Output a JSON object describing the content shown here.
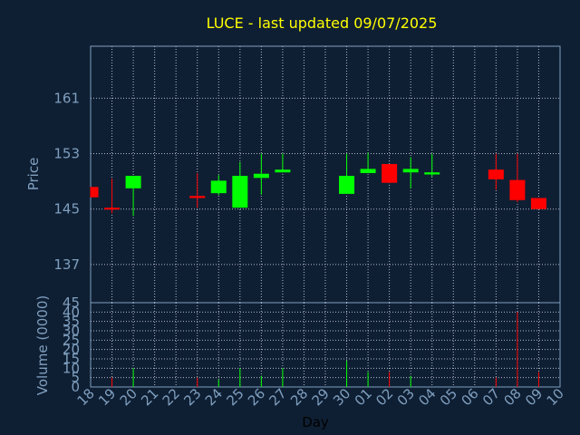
{
  "chart_data": {
    "type": "candlestick",
    "title": "LUCE - last updated 09/07/2025",
    "xlabel": "Day",
    "ylabel_price": "Price",
    "ylabel_volume": "Volume (0000)",
    "x_ticks": [
      "18",
      "19",
      "20",
      "21",
      "22",
      "23",
      "24",
      "25",
      "26",
      "27",
      "28",
      "29",
      "30",
      "01",
      "02",
      "03",
      "04",
      "05",
      "06",
      "07",
      "08",
      "09",
      "10"
    ],
    "price_ticks": [
      137,
      145,
      153,
      161
    ],
    "price_range": [
      131.5,
      168.5
    ],
    "volume_ticks": [
      0,
      5,
      10,
      15,
      20,
      25,
      30,
      35,
      40,
      45
    ],
    "volume_range": [
      0,
      45
    ],
    "grid": true,
    "colors": {
      "up": "#00ff00",
      "down": "#ff0000",
      "title": "#ffff00",
      "axis": "#7f9fbf",
      "grid": "#b0b8c8",
      "background": "#0f1f33"
    },
    "candles": [
      {
        "day": "18",
        "open": 148.2,
        "close": 146.7,
        "high": 148.2,
        "low": 146.7,
        "volume": 0
      },
      {
        "day": "19",
        "open": 145.2,
        "close": 145.0,
        "high": 149.4,
        "low": 144.4,
        "volume": 5
      },
      {
        "day": "20",
        "open": 148.0,
        "close": 149.8,
        "high": 149.8,
        "low": 144.0,
        "volume": 10
      },
      {
        "day": "23",
        "open": 146.9,
        "close": 146.6,
        "high": 150.2,
        "low": 145.2,
        "volume": 5
      },
      {
        "day": "24",
        "open": 147.3,
        "close": 149.1,
        "high": 149.9,
        "low": 147.0,
        "volume": 4
      },
      {
        "day": "25",
        "open": 145.2,
        "close": 149.8,
        "high": 151.8,
        "low": 145.2,
        "volume": 10
      },
      {
        "day": "26",
        "open": 149.5,
        "close": 150.1,
        "high": 153.0,
        "low": 147.1,
        "volume": 6
      },
      {
        "day": "27",
        "open": 150.3,
        "close": 150.7,
        "high": 153.0,
        "low": 150.3,
        "volume": 10
      },
      {
        "day": "30",
        "open": 147.2,
        "close": 149.8,
        "high": 153.0,
        "low": 147.2,
        "volume": 14
      },
      {
        "day": "01",
        "open": 150.2,
        "close": 150.8,
        "high": 153.1,
        "low": 150.2,
        "volume": 8
      },
      {
        "day": "02",
        "open": 151.5,
        "close": 148.8,
        "high": 151.5,
        "low": 148.8,
        "volume": 8
      },
      {
        "day": "03",
        "open": 150.3,
        "close": 150.8,
        "high": 152.5,
        "low": 148.0,
        "volume": 6
      },
      {
        "day": "04",
        "open": 150.0,
        "close": 150.3,
        "high": 153.0,
        "low": 149.7,
        "volume": 0
      },
      {
        "day": "07",
        "open": 150.7,
        "close": 149.3,
        "high": 153.0,
        "low": 147.8,
        "volume": 5
      },
      {
        "day": "08",
        "open": 149.2,
        "close": 146.3,
        "high": 153.0,
        "low": 146.0,
        "volume": 40
      },
      {
        "day": "09",
        "open": 146.6,
        "close": 145.0,
        "high": 146.6,
        "low": 145.0,
        "volume": 8
      }
    ]
  }
}
